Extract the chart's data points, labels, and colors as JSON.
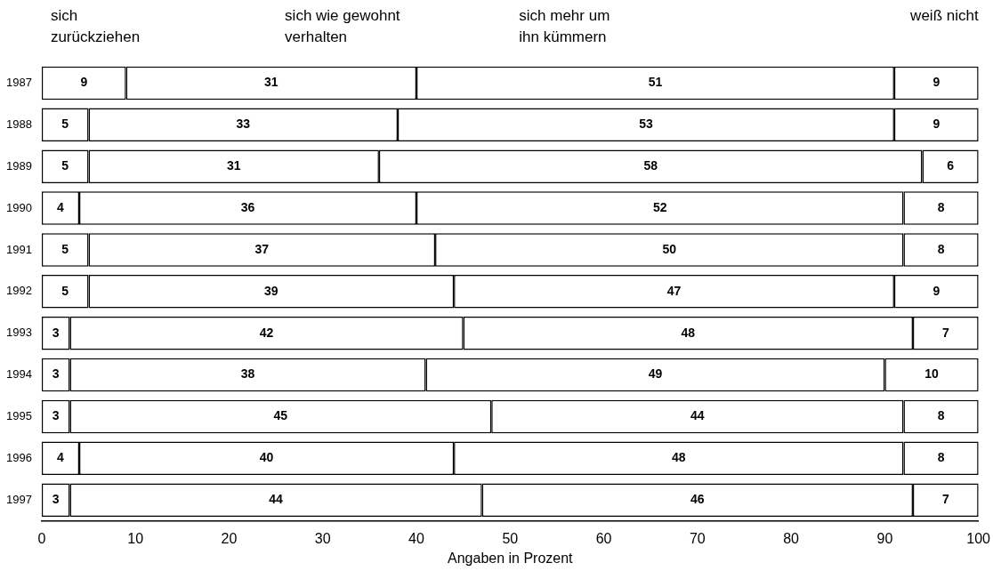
{
  "chart_data": {
    "type": "bar",
    "orientation": "horizontal",
    "stacked": true,
    "xlabel": "Angaben in Prozent",
    "categories": [
      "1987",
      "1988",
      "1989",
      "1990",
      "1991",
      "1992",
      "1993",
      "1994",
      "1995",
      "1996",
      "1997"
    ],
    "series": [
      {
        "name": "sich zurückziehen",
        "color": "#ffffff",
        "values": [
          9,
          5,
          5,
          4,
          5,
          5,
          3,
          3,
          3,
          4,
          3
        ]
      },
      {
        "name": "sich wie gewohnt verhalten",
        "color": "#ffffff",
        "values": [
          31,
          33,
          31,
          36,
          37,
          39,
          42,
          38,
          45,
          40,
          44
        ]
      },
      {
        "name": "sich mehr um ihn kümmern",
        "color": "#ffffff",
        "values": [
          51,
          53,
          58,
          52,
          50,
          47,
          48,
          49,
          44,
          48,
          46
        ]
      },
      {
        "name": "weiß nicht",
        "color": "#ffffff",
        "values": [
          9,
          9,
          6,
          8,
          8,
          9,
          7,
          10,
          8,
          8,
          7
        ]
      }
    ],
    "xlim": [
      0,
      100
    ],
    "xticks": [
      0,
      10,
      20,
      30,
      40,
      50,
      60,
      70,
      80,
      90,
      100
    ],
    "grid": false,
    "legend": "top",
    "data_labels": true
  }
}
